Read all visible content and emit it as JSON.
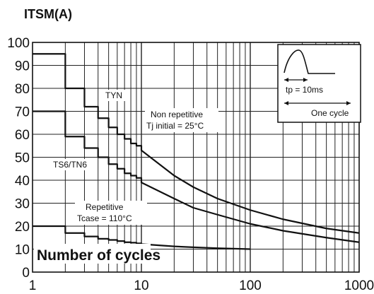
{
  "chart_data": {
    "type": "line",
    "ylabel": "ITSM(A)",
    "xlabel": "Number of cycles",
    "x_scale": "log",
    "xlim": [
      1,
      1000
    ],
    "ylim": [
      0,
      100
    ],
    "x_ticks": [
      1,
      10,
      100,
      1000
    ],
    "y_ticks": [
      0,
      10,
      20,
      30,
      40,
      50,
      60,
      70,
      80,
      90,
      100
    ],
    "grid": true,
    "series": [
      {
        "name": "TYN",
        "x": [
          1,
          2,
          3,
          4,
          5,
          6,
          7,
          8,
          9,
          10,
          20,
          30,
          50,
          100,
          200,
          500,
          1000
        ],
        "y": [
          95,
          80,
          72,
          67,
          63,
          60,
          58,
          56,
          55,
          53,
          42,
          37,
          32,
          27,
          23,
          19,
          17
        ]
      },
      {
        "name": "TS6/TN6",
        "x": [
          1,
          2,
          3,
          4,
          5,
          6,
          7,
          8,
          9,
          10,
          20,
          30,
          50,
          100,
          200,
          500,
          1000
        ],
        "y": [
          70,
          59,
          54,
          50,
          47,
          45,
          43,
          42,
          41,
          39,
          32,
          28,
          25,
          21,
          18,
          15,
          13
        ]
      },
      {
        "name": "",
        "x": [
          1,
          2,
          3,
          4,
          5,
          6,
          7,
          8,
          9,
          10,
          20,
          30,
          50,
          100
        ],
        "y": [
          20,
          17,
          15.5,
          14.5,
          14,
          13.5,
          13,
          12.8,
          12.5,
          12.2,
          11.2,
          10.8,
          10.4,
          10
        ]
      }
    ],
    "annotations": {
      "tyn_label": "TYN",
      "ts6_label": "TS6/TN6",
      "non_repetitive_line1": "Non repetitive",
      "non_repetitive_line2": "Tj initial = 25°C",
      "repetitive_line1": "Repetitive",
      "repetitive_line2": "Tcase = 110°C",
      "inset_tp": "tp = 10ms",
      "inset_cycle": "One cycle"
    }
  }
}
